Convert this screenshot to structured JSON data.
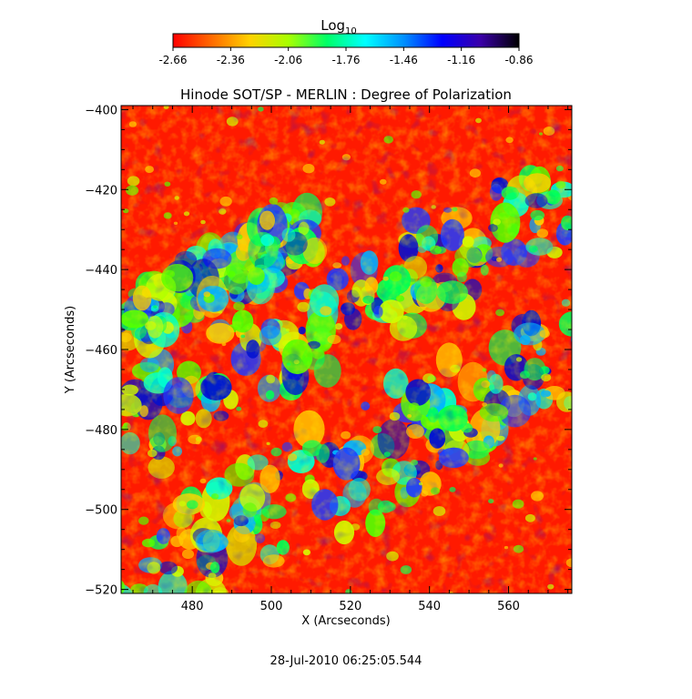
{
  "colorbar": {
    "label_main": "Log",
    "label_sub": "10",
    "ticks": [
      "-2.66",
      "-2.36",
      "-2.06",
      "-1.76",
      "-1.46",
      "-1.16",
      "-0.86"
    ],
    "colors": [
      "#ff0000",
      "#ff6a00",
      "#ffd200",
      "#a8ff00",
      "#00ff66",
      "#00ffff",
      "#0090ff",
      "#0000ff",
      "#3a00a8",
      "#000000"
    ]
  },
  "chart_data": {
    "type": "heatmap",
    "title": "Hinode SOT/SP - MERLIN : Degree of Polarization",
    "xlabel": "X (Arcseconds)",
    "ylabel": "Y (Arcseconds)",
    "xlim": [
      462,
      576
    ],
    "ylim": [
      -521,
      -399
    ],
    "x_ticks": [
      "480",
      "500",
      "520",
      "540",
      "560"
    ],
    "y_ticks": [
      "-400",
      "-420",
      "-440",
      "-460",
      "-480",
      "-500",
      "-520"
    ],
    "value_range": [
      -2.66,
      -0.86
    ],
    "value_scale": "log10",
    "footer": "28-Jul-2010 06:25:05.544"
  }
}
